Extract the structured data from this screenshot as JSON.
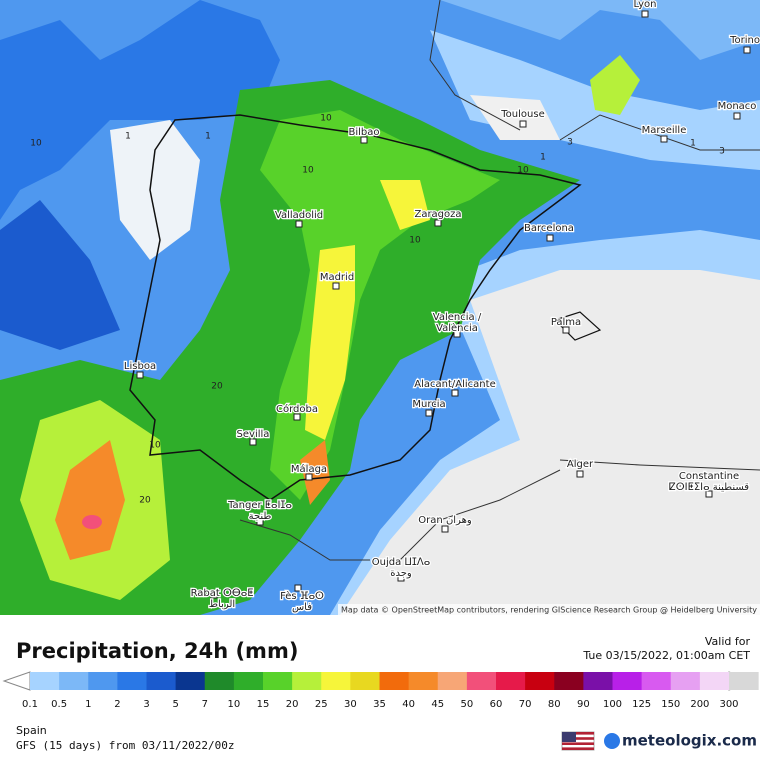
{
  "map": {
    "cities": [
      [
        "Lyon"
      ],
      [
        "Torino"
      ],
      [
        "Monaco"
      ],
      [
        "Toulouse"
      ],
      [
        "Marseille"
      ],
      [
        "Bilbao"
      ],
      [
        "Valladolid"
      ],
      [
        "Zaragoza"
      ],
      [
        "Barcelona"
      ],
      [
        "Madrid"
      ],
      [
        "Valencia /",
        "València"
      ],
      [
        "Palma"
      ],
      [
        "Lisboa"
      ],
      [
        "Alacant/Alicante"
      ],
      [
        "Córdoba"
      ],
      [
        "Murcia"
      ],
      [
        "Sevilla"
      ],
      [
        "Málaga"
      ],
      [
        "Alger"
      ],
      [
        "Constantine",
        "ⵇⵙⵏⵟⵉⵏⴰ قسنطينة"
      ],
      [
        "Tanger ⵟⴰⵏⵊⴰ",
        "طنجة"
      ],
      [
        "Oran وهران"
      ],
      [
        "Oujda ⵡⵊⴷⴰ",
        "وجدة"
      ],
      [
        "Rabat ⵔⴱⴰⵟ",
        "الرباط"
      ],
      [
        "Fès ⴼⴰⵙ",
        "فاس"
      ]
    ],
    "contour_labels": [
      "10",
      "10",
      "10",
      "1",
      "1",
      "10",
      "20",
      "10",
      "20",
      "10",
      "3",
      "1",
      "3",
      "1"
    ],
    "attribution": "Map data © OpenStreetMap contributors, rendering GIScience Research Group @ Heidelberg University"
  },
  "header": {
    "title": "Precipitation, 24h (mm)",
    "valid_label": "Valid for",
    "valid_time": "Tue 03/15/2022, 01:00am CET"
  },
  "legend": {
    "labels": [
      "0.1",
      "0.5",
      "1",
      "2",
      "3",
      "5",
      "7",
      "10",
      "15",
      "20",
      "25",
      "30",
      "35",
      "40",
      "45",
      "50",
      "60",
      "70",
      "80",
      "90",
      "100",
      "125",
      "150",
      "200",
      "300"
    ],
    "colors": [
      "#a6d3ff",
      "#7cb8f7",
      "#4f98ef",
      "#2a78e6",
      "#1b5bce",
      "#0a3690",
      "#1f8a2a",
      "#2fae2a",
      "#58d22a",
      "#b6f03a",
      "#f6f53a",
      "#e8d820",
      "#f26b0c",
      "#f58a2a",
      "#f7a676",
      "#f2507a",
      "#e61a4a",
      "#c80010",
      "#8a0020",
      "#7a10a8",
      "#b820e8",
      "#d85af0",
      "#e6a0f2",
      "#f3d6f6",
      "#d8d8d8"
    ]
  },
  "footer": {
    "region": "Spain",
    "model": "GFS (15 days) from  03/11/2022/00z",
    "brand": "meteologix.com"
  }
}
